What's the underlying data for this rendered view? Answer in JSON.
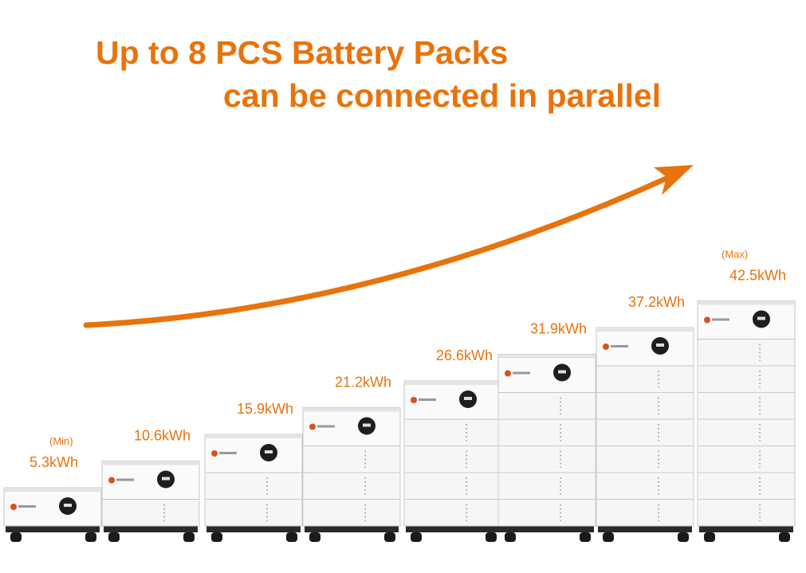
{
  "headline": {
    "line1": "Up to 8 PCS Battery Packs",
    "line2": "can be connected in parallel"
  },
  "stacks": [
    {
      "note": "(Min)",
      "capacity": "5.3kWh"
    },
    {
      "capacity": "10.6kWh"
    },
    {
      "capacity": "15.9kWh"
    },
    {
      "capacity": "21.2kWh"
    },
    {
      "capacity": "26.6kWh"
    },
    {
      "capacity": "31.9kWh"
    },
    {
      "capacity": "37.2kWh"
    },
    {
      "note": "(Max)",
      "capacity": "42.5kWh"
    }
  ]
}
